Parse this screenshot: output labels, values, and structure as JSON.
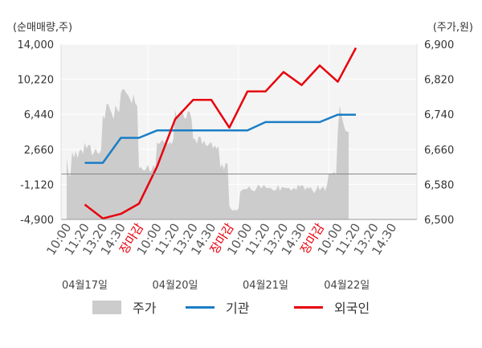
{
  "chart_data": {
    "type": "line",
    "left_axis_title": "(순매매량,주)",
    "right_axis_title": "(주가,원)",
    "left_ticks": [
      "14,000",
      "10,220",
      "6,440",
      "2,660",
      "-1,120",
      "-4,900"
    ],
    "left_tick_values": [
      14000,
      10220,
      6440,
      2660,
      -1120,
      -4900
    ],
    "right_ticks": [
      "6,900",
      "6,820",
      "6,740",
      "6,660",
      "6,580",
      "6,500"
    ],
    "right_tick_values": [
      6900,
      6820,
      6740,
      6660,
      6580,
      6500
    ],
    "left_ylim": [
      -4900,
      14000
    ],
    "right_ylim": [
      6500,
      6900
    ],
    "x_ticks": [
      {
        "label": "10:00",
        "close": false
      },
      {
        "label": "11:20",
        "close": false
      },
      {
        "label": "13:20",
        "close": false
      },
      {
        "label": "14:30",
        "close": false
      },
      {
        "label": "장마감",
        "close": true
      },
      {
        "label": "10:00",
        "close": false
      },
      {
        "label": "11:20",
        "close": false
      },
      {
        "label": "13:20",
        "close": false
      },
      {
        "label": "14:30",
        "close": false
      },
      {
        "label": "장마감",
        "close": true
      },
      {
        "label": "10:00",
        "close": false
      },
      {
        "label": "11:20",
        "close": false
      },
      {
        "label": "13:20",
        "close": false
      },
      {
        "label": "14:30",
        "close": false
      },
      {
        "label": "장마감",
        "close": true
      },
      {
        "label": "10:00",
        "close": false
      },
      {
        "label": "11:20",
        "close": false
      },
      {
        "label": "13:20",
        "close": false
      },
      {
        "label": "14:30",
        "close": false
      }
    ],
    "day_labels": [
      "04월17일",
      "04월20일",
      "04월21일",
      "04월22일"
    ],
    "day_label_slots": [
      1,
      6,
      11,
      15.5
    ],
    "day_boundaries": [
      4.5,
      9.5,
      14.5
    ],
    "slot_count": 19,
    "series": [
      {
        "name": "주가",
        "type": "area",
        "axis": "right",
        "color": "#cccccc",
        "x": [
          0.0,
          0.1,
          0.2,
          0.3,
          0.4,
          0.5,
          0.6,
          0.7,
          0.8,
          0.9,
          1.0,
          1.1,
          1.2,
          1.3,
          1.4,
          1.5,
          1.6,
          1.7,
          1.8,
          1.9,
          2.0,
          2.1,
          2.2,
          2.3,
          2.4,
          2.5,
          2.6,
          2.7,
          2.8,
          2.9,
          3.0,
          3.1,
          3.2,
          3.3,
          3.4,
          3.5,
          3.6,
          3.7,
          3.8,
          3.9,
          4.0,
          4.1,
          4.2,
          4.3,
          4.4,
          4.5,
          4.6,
          4.7,
          4.8,
          4.9,
          5.0,
          5.1,
          5.2,
          5.3,
          5.4,
          5.5,
          5.6,
          5.7,
          5.8,
          5.9,
          6.0,
          6.1,
          6.2,
          6.3,
          6.4,
          6.5,
          6.6,
          6.7,
          6.8,
          6.9,
          7.0,
          7.1,
          7.2,
          7.3,
          7.4,
          7.5,
          7.6,
          7.7,
          7.8,
          7.9,
          8.0,
          8.1,
          8.2,
          8.3,
          8.4,
          8.5,
          8.6,
          8.7,
          8.8,
          8.9,
          9.0,
          9.1,
          9.2,
          9.3,
          9.4,
          9.5,
          9.6,
          9.7,
          9.8,
          9.9,
          10.0,
          10.1,
          10.2,
          10.3,
          10.4,
          10.5,
          10.6,
          10.7,
          10.8,
          10.9,
          11.0,
          11.1,
          11.2,
          11.3,
          11.4,
          11.5,
          11.6,
          11.7,
          11.8,
          11.9,
          12.0,
          12.1,
          12.2,
          12.3,
          12.4,
          12.5,
          12.6,
          12.7,
          12.8,
          12.9,
          13.0,
          13.1,
          13.2,
          13.3,
          13.4,
          13.5,
          13.6,
          13.7,
          13.8,
          13.9,
          14.0,
          14.1,
          14.2,
          14.3,
          14.4,
          14.5,
          14.6,
          14.7,
          14.8,
          14.9,
          15.0,
          15.1,
          15.2,
          15.3,
          15.4,
          15.5,
          15.6
        ],
        "values": [
          6641,
          6604,
          6598,
          6655,
          6641,
          6656,
          6640,
          6656,
          6660,
          6649,
          6675,
          6662,
          6670,
          6670,
          6646,
          6652,
          6662,
          6652,
          6650,
          6658,
          6737,
          6730,
          6762,
          6764,
          6752,
          6741,
          6729,
          6761,
          6750,
          6745,
          6789,
          6798,
          6796,
          6788,
          6784,
          6775,
          6765,
          6785,
          6764,
          6759,
          6617,
          6620,
          6614,
          6611,
          6616,
          6625,
          6609,
          6612,
          6625,
          6615,
          6676,
          6672,
          6677,
          6682,
          6674,
          6682,
          6670,
          6677,
          6672,
          6682,
          6749,
          6732,
          6735,
          6748,
          6747,
          6732,
          6730,
          6747,
          6746,
          6731,
          6684,
          6684,
          6673,
          6689,
          6689,
          6671,
          6680,
          6669,
          6668,
          6674,
          6676,
          6662,
          6669,
          6661,
          6667,
          6618,
          6626,
          6614,
          6629,
          6627,
          6530,
          6523,
          6520,
          6522,
          6520,
          6525,
          6563,
          6567,
          6569,
          6569,
          6570,
          6576,
          6568,
          6566,
          6564,
          6571,
          6580,
          6574,
          6571,
          6579,
          6574,
          6571,
          6572,
          6571,
          6567,
          6566,
          6568,
          6579,
          6565,
          6574,
          6573,
          6572,
          6571,
          6572,
          6566,
          6569,
          6572,
          6567,
          6580,
          6574,
          6579,
          6575,
          6567,
          6574,
          6570,
          6574,
          6566,
          6560,
          6567,
          6578,
          6566,
          6572,
          6575,
          6565,
          6578,
          6604,
          6605,
          6604,
          6609,
          6600,
          6700,
          6760,
          6740,
          6720,
          6705,
          6700,
          6700
        ]
      },
      {
        "name": "기관",
        "type": "line",
        "axis": "left",
        "color": "#1a7ec6",
        "x": [
          1.0,
          2.0,
          3.0,
          4.0,
          5.0,
          6.0,
          7.0,
          8.0,
          9.0,
          10.0,
          11.0,
          12.0,
          13.0,
          14.0,
          15.0,
          16.0
        ],
        "values": [
          1200,
          1200,
          3900,
          3900,
          4700,
          4700,
          4700,
          4700,
          4700,
          4700,
          5600,
          5600,
          5600,
          5600,
          6400,
          6400
        ]
      },
      {
        "name": "외국인",
        "type": "line",
        "axis": "left",
        "color": "#e8000b",
        "x": [
          1.0,
          2.0,
          3.0,
          4.0,
          5.0,
          6.0,
          7.0,
          8.0,
          9.0,
          10.0,
          11.0,
          12.0,
          13.0,
          14.0,
          15.0,
          16.0
        ],
        "values": [
          -3300,
          -4800,
          -4300,
          -3200,
          800,
          5900,
          8000,
          8000,
          5000,
          8900,
          8900,
          11000,
          9600,
          11700,
          9950,
          13600
        ]
      }
    ]
  }
}
